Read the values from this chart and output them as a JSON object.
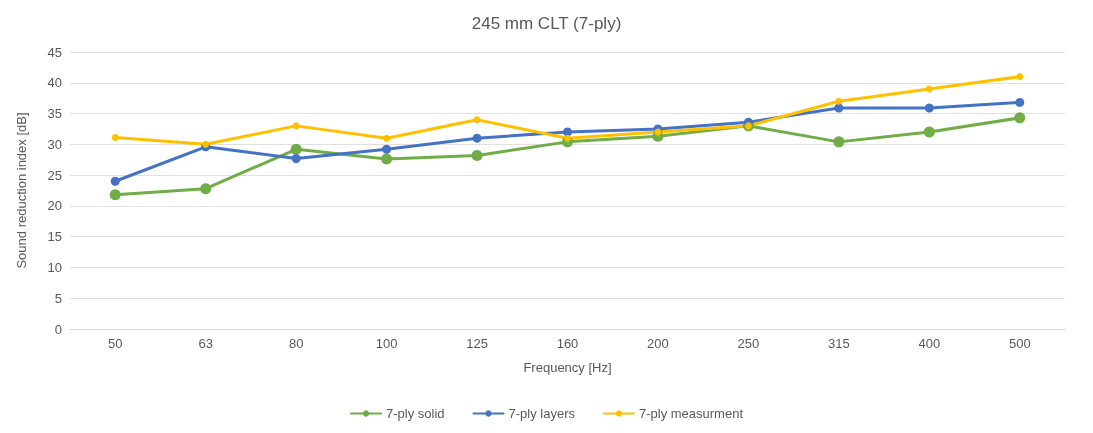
{
  "chart_data": {
    "type": "line",
    "title": "245 mm CLT (7-ply)",
    "xlabel": "Frequency [Hz]",
    "ylabel": "Sound reduction index [dB]",
    "categories": [
      "50",
      "63",
      "80",
      "100",
      "125",
      "160",
      "200",
      "250",
      "315",
      "400",
      "500"
    ],
    "series": [
      {
        "name": "7-ply solid",
        "color": "#70ad47",
        "values": [
          21.8,
          22.8,
          29.2,
          27.6,
          28.2,
          30.4,
          31.3,
          33.0,
          30.4,
          32.0,
          34.3
        ]
      },
      {
        "name": "7-ply layers",
        "color": "#4472c4",
        "values": [
          24.0,
          29.6,
          27.7,
          29.2,
          31.0,
          32.0,
          32.5,
          33.6,
          35.9,
          35.9,
          36.8
        ]
      },
      {
        "name": "7-ply measurment",
        "color": "#ffc000",
        "values": [
          31.1,
          30.0,
          33.0,
          31.0,
          34.0,
          31.0,
          32.0,
          33.0,
          37.0,
          39.0,
          41.0
        ]
      }
    ],
    "ylim": [
      0,
      45
    ],
    "yticks": [
      0,
      5,
      10,
      15,
      20,
      25,
      30,
      35,
      40,
      45
    ],
    "grid": "y",
    "legend": "bottom",
    "marker": "circle",
    "line_style": "solid"
  }
}
